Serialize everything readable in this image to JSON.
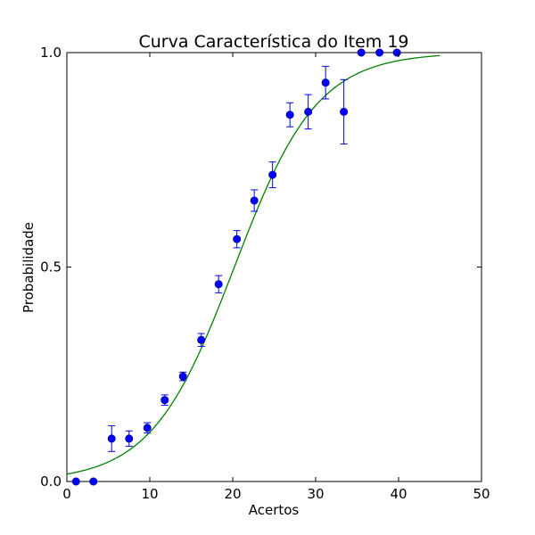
{
  "chart_data": {
    "type": "scatter",
    "title": "Curva Característica do Item 19",
    "xlabel": "Acertos",
    "ylabel": "Probabilidade",
    "xlim": [
      0,
      50
    ],
    "ylim": [
      0.0,
      1.0
    ],
    "xticks": [
      0,
      10,
      20,
      30,
      40,
      50
    ],
    "xtick_labels": [
      "0",
      "10",
      "20",
      "30",
      "40",
      "50"
    ],
    "yticks": [
      0.0,
      0.5,
      1.0
    ],
    "ytick_labels": [
      "0.0",
      "0.5",
      "1.0"
    ],
    "grid": false,
    "colors": {
      "points": "#0000ff",
      "errorbars": "#0000ff",
      "curve": "#008000"
    },
    "series": [
      {
        "kind": "points_with_errorbars",
        "x": [
          1.1,
          3.2,
          5.4,
          7.5,
          9.7,
          11.8,
          14.0,
          16.2,
          18.3,
          20.5,
          22.6,
          24.8,
          26.9,
          29.1,
          31.2,
          33.4,
          35.5,
          37.7,
          39.8
        ],
        "y": [
          0.0,
          0.0,
          0.1,
          0.1,
          0.125,
          0.19,
          0.245,
          0.33,
          0.46,
          0.565,
          0.655,
          0.715,
          0.855,
          0.862,
          0.93,
          0.862,
          1.0,
          1.0,
          1.0
        ],
        "yerr": [
          0.0,
          0.0,
          0.03,
          0.018,
          0.012,
          0.012,
          0.01,
          0.015,
          0.02,
          0.02,
          0.025,
          0.03,
          0.028,
          0.04,
          0.038,
          0.075,
          0.0,
          0.0,
          0.0
        ]
      },
      {
        "kind": "logistic_curve",
        "x_start": 0,
        "x_end": 45,
        "midpoint": 20.2,
        "scale": 5.0
      }
    ]
  }
}
